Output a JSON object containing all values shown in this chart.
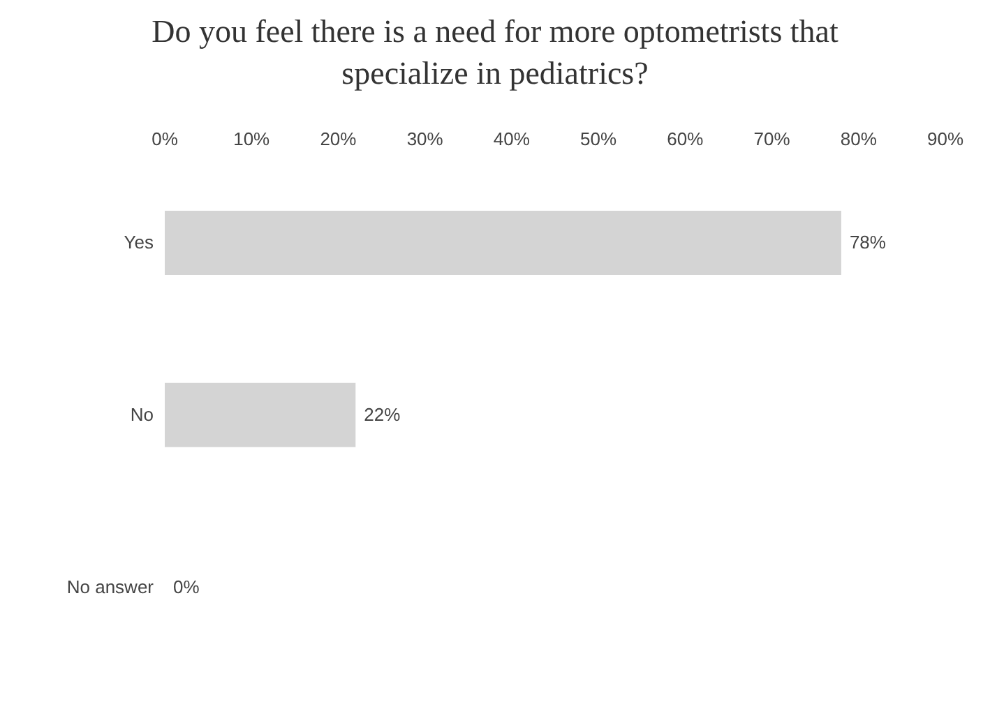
{
  "chart_data": {
    "type": "bar",
    "orientation": "horizontal",
    "title": "Do you feel there is a need for more optometrists that specialize in pediatrics?",
    "categories": [
      "Yes",
      "No",
      "No answer"
    ],
    "values": [
      78,
      22,
      0
    ],
    "value_labels": [
      "78%",
      "22%",
      "0%"
    ],
    "color": "#d4d4d4",
    "xlim": [
      0,
      90
    ],
    "xticks": [
      {
        "value": 0,
        "label": "0%"
      },
      {
        "value": 10,
        "label": "10%"
      },
      {
        "value": 20,
        "label": "20%"
      },
      {
        "value": 30,
        "label": "30%"
      },
      {
        "value": 40,
        "label": "40%"
      },
      {
        "value": 50,
        "label": "50%"
      },
      {
        "value": 60,
        "label": "60%"
      },
      {
        "value": 70,
        "label": "70%"
      },
      {
        "value": 80,
        "label": "80%"
      },
      {
        "value": 90,
        "label": "90%"
      }
    ],
    "grid": false,
    "legend": false
  }
}
